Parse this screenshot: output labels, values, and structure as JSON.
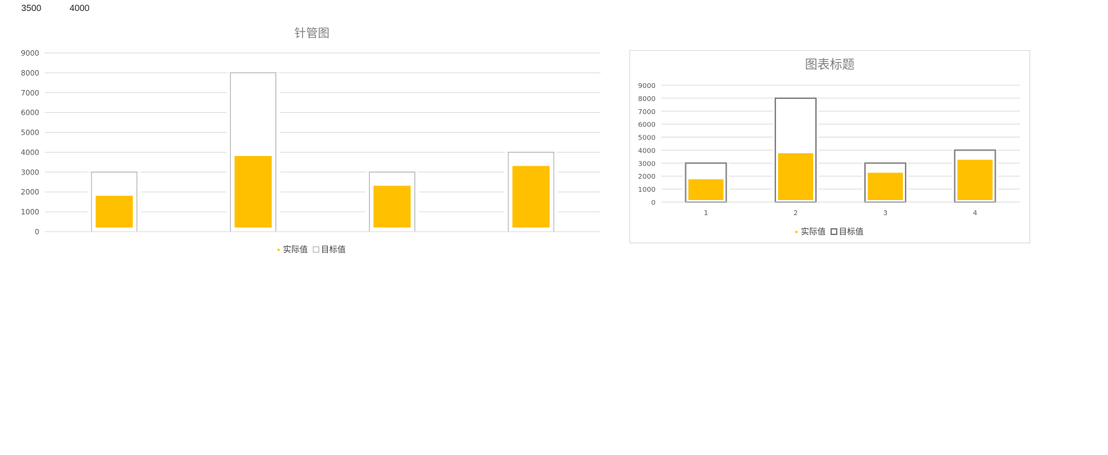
{
  "sheet": {
    "cells": [
      "3500",
      "4000"
    ]
  },
  "chart_data": [
    {
      "type": "bar",
      "title": "针管图",
      "categories": [
        "",
        "",
        "",
        ""
      ],
      "series": [
        {
          "name": "实际值",
          "values": [
            1600,
            3600,
            2100,
            3100
          ],
          "color": "#FFC000"
        },
        {
          "name": "目标值",
          "values": [
            3000,
            8000,
            3000,
            4000
          ],
          "color": "#ffffff",
          "outline": "#a6a6a6"
        }
      ],
      "ylim": [
        0,
        9000
      ],
      "yticks": [
        "0",
        "1000",
        "2000",
        "3000",
        "4000",
        "5000",
        "6000",
        "7000",
        "8000",
        "9000"
      ],
      "grid": true,
      "legend": "bottom"
    },
    {
      "type": "bar",
      "title": "图表标题",
      "categories": [
        "1",
        "2",
        "3",
        "4"
      ],
      "series": [
        {
          "name": "实际值",
          "values": [
            1600,
            3600,
            2100,
            3100
          ],
          "color": "#FFC000"
        },
        {
          "name": "目标值",
          "values": [
            3000,
            8000,
            3000,
            4000
          ],
          "color": "#ffffff",
          "outline": "#7f7f7f"
        }
      ],
      "ylim": [
        0,
        9000
      ],
      "yticks": [
        "0",
        "1000",
        "2000",
        "3000",
        "4000",
        "5000",
        "6000",
        "7000",
        "8000",
        "9000"
      ],
      "grid": true,
      "legend": "bottom"
    }
  ]
}
